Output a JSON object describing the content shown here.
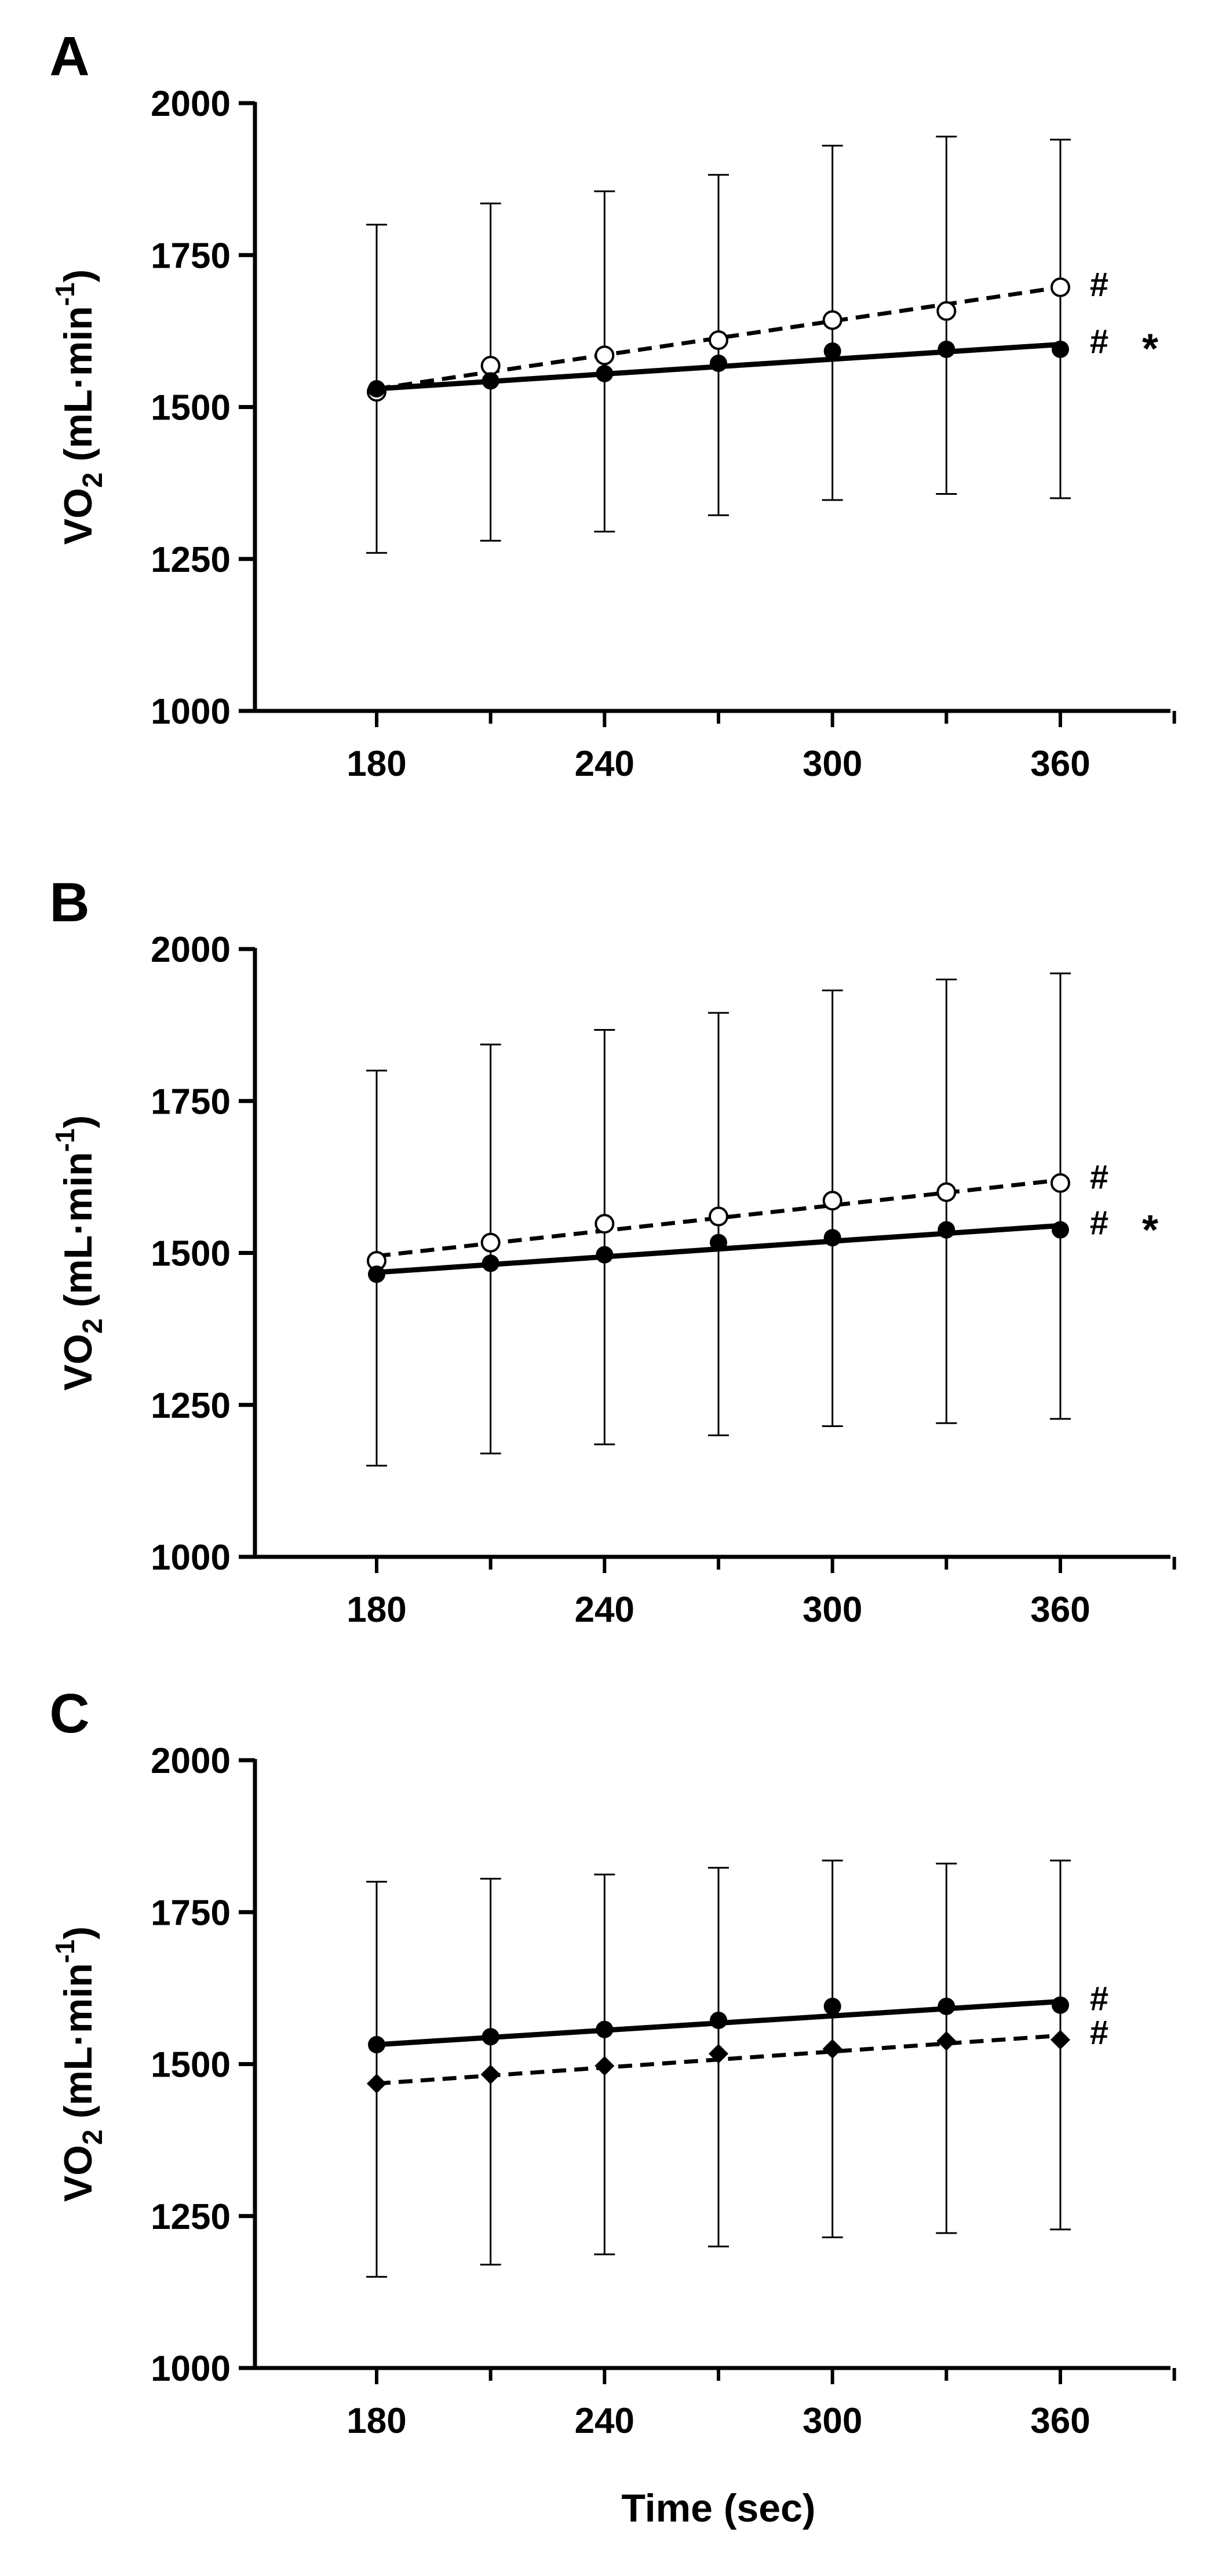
{
  "chart_data": [
    {
      "type": "line",
      "panel_label": "A",
      "x": [
        180,
        210,
        240,
        270,
        300,
        330,
        360
      ],
      "xticks": [
        "180",
        "240",
        "300",
        "360"
      ],
      "xlim": [
        150,
        390
      ],
      "ylim": [
        1000,
        2000
      ],
      "yticks": [
        "1000",
        "1250",
        "1500",
        "1750",
        "2000"
      ],
      "ylabel": "VO2 (mL·min-1)",
      "xlabel": "",
      "series": [
        {
          "name": "open circles",
          "marker": "open-circle",
          "line": "dashed",
          "values": [
            1525,
            1568,
            1585,
            1610,
            1643,
            1658,
            1697
          ],
          "error_upper": [
            1800,
            1835,
            1855,
            1882,
            1930,
            1945,
            1940
          ],
          "error_lower": [
            1260,
            1280,
            1295,
            1322,
            1347,
            1357,
            1350
          ],
          "fit": [
            1530,
            1697
          ]
        },
        {
          "name": "filled circles",
          "marker": "filled-circle",
          "line": "solid",
          "values": [
            1530,
            1543,
            1555,
            1572,
            1592,
            1595,
            1595
          ],
          "fit": [
            1530,
            1603
          ]
        }
      ],
      "annotations": [
        "#",
        "#",
        "*"
      ]
    },
    {
      "type": "line",
      "panel_label": "B",
      "x": [
        180,
        210,
        240,
        270,
        300,
        330,
        360
      ],
      "xticks": [
        "180",
        "240",
        "300",
        "360"
      ],
      "xlim": [
        150,
        390
      ],
      "ylim": [
        1000,
        2000
      ],
      "yticks": [
        "1000",
        "1250",
        "1500",
        "1750",
        "2000"
      ],
      "ylabel": "VO2 (mL·min-1)",
      "xlabel": "",
      "series": [
        {
          "name": "open circles",
          "marker": "open-circle",
          "line": "dashed",
          "values": [
            1487,
            1517,
            1548,
            1560,
            1586,
            1600,
            1615
          ],
          "error_upper": [
            1800,
            1843,
            1867,
            1895,
            1932,
            1950,
            1960
          ],
          "error_lower": [
            1150,
            1170,
            1185,
            1200,
            1215,
            1220,
            1227
          ],
          "fit": [
            1495,
            1620
          ]
        },
        {
          "name": "filled circles",
          "marker": "filled-circle",
          "line": "solid",
          "values": [
            1465,
            1483,
            1497,
            1517,
            1525,
            1538,
            1538
          ],
          "fit": [
            1468,
            1545
          ]
        }
      ],
      "annotations": [
        "#",
        "#",
        "*"
      ]
    },
    {
      "type": "line",
      "panel_label": "C",
      "x": [
        180,
        210,
        240,
        270,
        300,
        330,
        360
      ],
      "xticks": [
        "180",
        "240",
        "300",
        "360"
      ],
      "xlim": [
        150,
        390
      ],
      "ylim": [
        1000,
        2000
      ],
      "yticks": [
        "1000",
        "1250",
        "1500",
        "1750",
        "2000"
      ],
      "ylabel": "VO2 (mL·min-1)",
      "xlabel": "Time (sec)",
      "series": [
        {
          "name": "filled circles",
          "marker": "filled-circle",
          "line": "solid",
          "values": [
            1532,
            1545,
            1557,
            1572,
            1595,
            1595,
            1597
          ],
          "error_upper": [
            1800,
            1805,
            1812,
            1823,
            1835,
            1830,
            1835
          ],
          "error_lower": [
            1150,
            1170,
            1187,
            1200,
            1215,
            1222,
            1228
          ],
          "fit": [
            1532,
            1603
          ]
        },
        {
          "name": "filled diamonds",
          "marker": "filled-diamond",
          "line": "dashed",
          "values": [
            1468,
            1483,
            1497,
            1517,
            1525,
            1538,
            1540
          ],
          "fit": [
            1468,
            1547
          ]
        }
      ],
      "annotations": [
        "#",
        "#"
      ]
    }
  ]
}
